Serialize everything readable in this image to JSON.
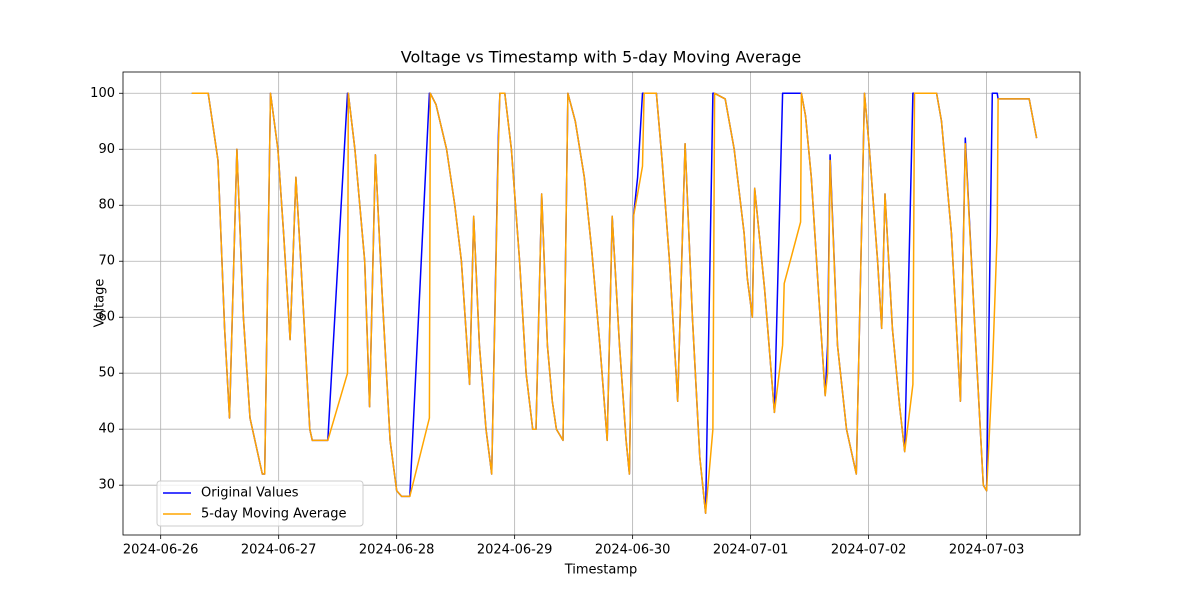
{
  "chart_data": {
    "type": "line",
    "title": "Voltage vs Timestamp with 5-day Moving Average",
    "x_label": "Timestamp",
    "y_label": "Voltage",
    "x": [
      "2024-06-26T06:20",
      "2024-06-26T09:40",
      "2024-06-26T10:20",
      "2024-06-26T11:40",
      "2024-06-26T13:00",
      "2024-06-26T14:00",
      "2024-06-26T15:30",
      "2024-06-26T16:50",
      "2024-06-26T18:10",
      "2024-06-26T19:40",
      "2024-06-26T20:40",
      "2024-06-26T21:10",
      "2024-06-26T22:20",
      "2024-06-26T23:50",
      "2024-06-27T01:00",
      "2024-06-27T02:20",
      "2024-06-27T03:30",
      "2024-06-27T04:30",
      "2024-06-27T06:20",
      "2024-06-27T06:50",
      "2024-06-27T10:00",
      "2024-06-27T14:00",
      "2024-06-27T14:10",
      "2024-06-27T15:30",
      "2024-06-27T16:30",
      "2024-06-27T17:30",
      "2024-06-27T18:30",
      "2024-06-27T19:40",
      "2024-06-27T21:00",
      "2024-06-27T22:40",
      "2024-06-28T00:00",
      "2024-06-28T01:00",
      "2024-06-28T02:40",
      "2024-06-28T06:40",
      "2024-06-28T06:50",
      "2024-06-28T08:00",
      "2024-06-28T10:10",
      "2024-06-28T11:50",
      "2024-06-28T13:10",
      "2024-06-28T14:50",
      "2024-06-28T15:40",
      "2024-06-28T16:50",
      "2024-06-28T18:10",
      "2024-06-28T19:20",
      "2024-06-28T20:40",
      "2024-06-28T21:00",
      "2024-06-28T22:00",
      "2024-06-28T23:20",
      "2024-06-29T01:00",
      "2024-06-29T02:20",
      "2024-06-29T03:40",
      "2024-06-29T04:20",
      "2024-06-29T05:30",
      "2024-06-29T06:40",
      "2024-06-29T07:40",
      "2024-06-29T08:30",
      "2024-06-29T09:50",
      "2024-06-29T10:50",
      "2024-06-29T12:20",
      "2024-06-29T14:10",
      "2024-06-29T15:40",
      "2024-06-29T17:20",
      "2024-06-29T18:50",
      "2024-06-29T19:50",
      "2024-06-29T21:20",
      "2024-06-29T22:40",
      "2024-06-29T23:20",
      "2024-06-30T00:10",
      "2024-06-30T01:00",
      "2024-06-30T02:00",
      "2024-06-30T02:20",
      "2024-06-30T04:50",
      "2024-06-30T06:00",
      "2024-06-30T07:30",
      "2024-06-30T09:10",
      "2024-06-30T10:40",
      "2024-06-30T12:10",
      "2024-06-30T13:40",
      "2024-06-30T14:50",
      "2024-06-30T16:20",
      "2024-06-30T16:40",
      "2024-06-30T18:50",
      "2024-06-30T20:40",
      "2024-06-30T22:40",
      "2024-06-30T23:20",
      "2024-07-01T00:20",
      "2024-07-01T00:50",
      "2024-07-01T02:50",
      "2024-07-01T04:50",
      "2024-07-01T06:30",
      "2024-07-01T06:50",
      "2024-07-01T10:10",
      "2024-07-01T10:20",
      "2024-07-01T11:10",
      "2024-07-01T12:20",
      "2024-07-01T14:00",
      "2024-07-01T15:10",
      "2024-07-01T15:40",
      "2024-07-01T16:10",
      "2024-07-01T17:40",
      "2024-07-01T19:30",
      "2024-07-01T21:30",
      "2024-07-01T23:10",
      "2024-07-02T00:10",
      "2024-07-02T01:50",
      "2024-07-02T02:40",
      "2024-07-02T03:20",
      "2024-07-02T04:50",
      "2024-07-02T06:20",
      "2024-07-02T07:20",
      "2024-07-02T09:00",
      "2024-07-02T09:20",
      "2024-07-02T13:50",
      "2024-07-02T14:50",
      "2024-07-02T16:50",
      "2024-07-02T18:40",
      "2024-07-02T19:40",
      "2024-07-02T21:30",
      "2024-07-02T23:20",
      "2024-07-03T00:00",
      "2024-07-03T01:10",
      "2024-07-03T02:10",
      "2024-07-03T02:20",
      "2024-07-03T08:40",
      "2024-07-03T10:10"
    ],
    "series": [
      {
        "name": "Original Values",
        "color": "#0000ff",
        "values": [
          100,
          100,
          96,
          88,
          58,
          42,
          90,
          60,
          42,
          36,
          32,
          32,
          100,
          90,
          75,
          56,
          85,
          70,
          40,
          38,
          38,
          100,
          100,
          90,
          80,
          70,
          44,
          89,
          65,
          38,
          29,
          28,
          28,
          100,
          100,
          98,
          90,
          80,
          70,
          48,
          78,
          55,
          40,
          32,
          92,
          100,
          100,
          90,
          70,
          50,
          40,
          40,
          82,
          55,
          45,
          40,
          38,
          100,
          95,
          85,
          72,
          55,
          38,
          78,
          55,
          38,
          32,
          78,
          85,
          100,
          100,
          100,
          88,
          70,
          45,
          91,
          60,
          35,
          25,
          100,
          100,
          99,
          90,
          75,
          67,
          60,
          83,
          65,
          43,
          100,
          100,
          100,
          100,
          96,
          85,
          62,
          46,
          55,
          89,
          55,
          40,
          32,
          100,
          90,
          70,
          58,
          82,
          58,
          44,
          36,
          100,
          100,
          100,
          95,
          75,
          45,
          92,
          60,
          30,
          29,
          100,
          100,
          99,
          99,
          92
        ]
      },
      {
        "name": "5-day Moving Average",
        "color": "#ffa500",
        "values": [
          100,
          100,
          96,
          88,
          58,
          42,
          90,
          60,
          42,
          36,
          32,
          32,
          100,
          90,
          75,
          56,
          85,
          70,
          40,
          38,
          38,
          50,
          100,
          90,
          80,
          70,
          44,
          89,
          65,
          38,
          29,
          28,
          28,
          42,
          100,
          98,
          90,
          80,
          70,
          48,
          78,
          55,
          40,
          32,
          90,
          100,
          100,
          90,
          70,
          50,
          40,
          40,
          82,
          55,
          45,
          40,
          38,
          100,
          95,
          85,
          72,
          55,
          38,
          78,
          55,
          38,
          32,
          78,
          82,
          87,
          100,
          100,
          88,
          70,
          45,
          91,
          60,
          35,
          25,
          40,
          100,
          99,
          90,
          75,
          67,
          60,
          83,
          65,
          43,
          55,
          66,
          77,
          100,
          96,
          85,
          62,
          46,
          50,
          88,
          55,
          40,
          32,
          100,
          90,
          70,
          58,
          82,
          58,
          44,
          36,
          48,
          100,
          100,
          95,
          75,
          45,
          91,
          60,
          30,
          29,
          50,
          75,
          99,
          99,
          92
        ]
      }
    ],
    "xlim": [
      "2024-06-25T16:20",
      "2024-07-03T19:00"
    ],
    "xticks": [
      "2024-06-26",
      "2024-06-27",
      "2024-06-28",
      "2024-06-29",
      "2024-06-30",
      "2024-07-01",
      "2024-07-02",
      "2024-07-03"
    ],
    "ylim": [
      21.1,
      103.8
    ],
    "yticks": [
      30,
      40,
      50,
      60,
      70,
      80,
      90,
      100
    ],
    "grid": true,
    "legend": "lower left"
  }
}
